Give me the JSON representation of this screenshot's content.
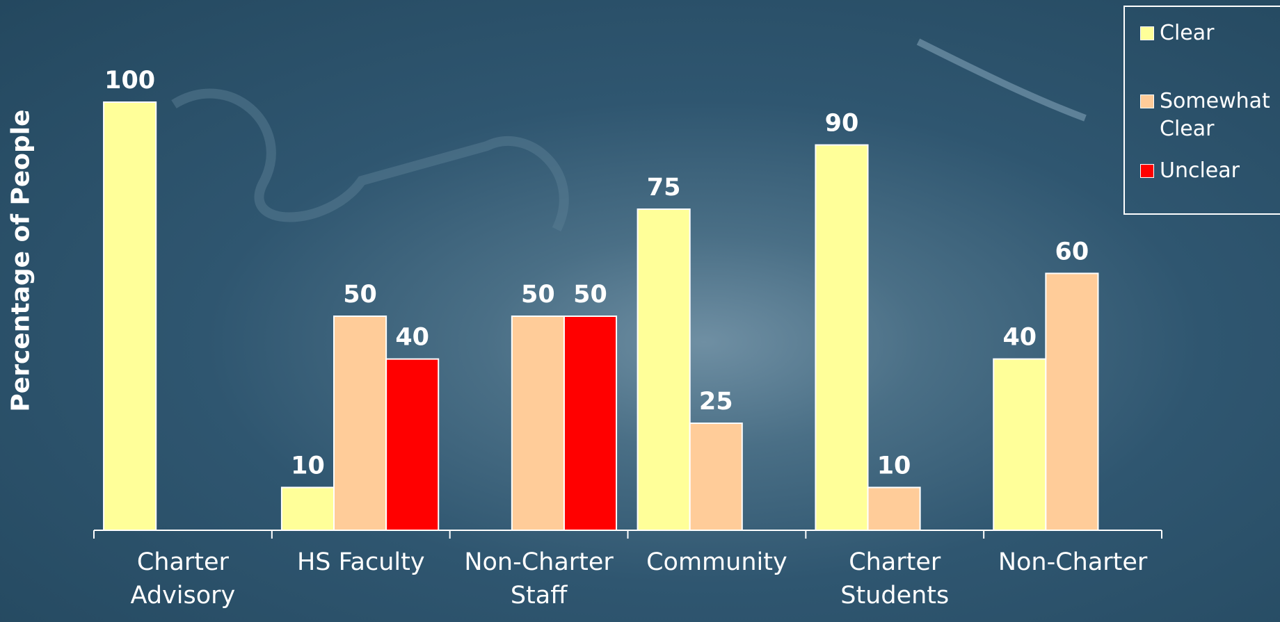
{
  "chart_data": {
    "type": "bar",
    "y_label": "Percentage of People",
    "categories": [
      "Charter Advisory",
      "HS Faculty",
      "Non-Charter Staff",
      "Community",
      "Charter Students",
      "Non-Charter"
    ],
    "series": [
      {
        "name": "Clear",
        "color": "#ffff99",
        "values": [
          100,
          10,
          null,
          75,
          90,
          40
        ]
      },
      {
        "name": "Somewhat Clear",
        "color": "#ffcc99",
        "values": [
          null,
          50,
          50,
          25,
          10,
          60
        ]
      },
      {
        "name": "Unclear",
        "color": "#ff0000",
        "values": [
          null,
          40,
          50,
          null,
          null,
          null
        ]
      }
    ],
    "ylim": [
      0,
      100
    ],
    "legend": "top-right"
  }
}
